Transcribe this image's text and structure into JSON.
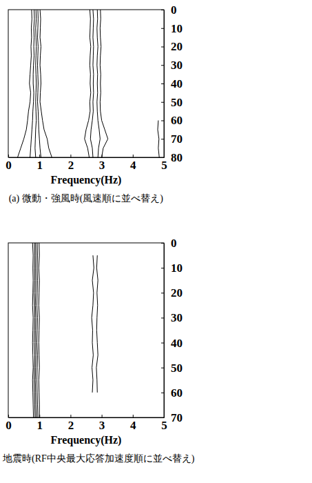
{
  "chart_data": [
    {
      "type": "contour",
      "title": "(a) 微動・強風時(風速順に並べ替え)",
      "x_label": "Frequency(Hz)",
      "color": "#000000",
      "xlim": [
        0,
        5
      ],
      "xticks": [
        0,
        1,
        2,
        3,
        4,
        5
      ],
      "ylim": [
        0,
        80
      ],
      "yticks": [
        0,
        10,
        20,
        30,
        40,
        50,
        60,
        70,
        80
      ],
      "y": [
        0,
        5,
        10,
        15,
        20,
        25,
        30,
        35,
        40,
        45,
        50,
        55,
        60,
        65,
        70,
        75,
        80
      ],
      "series": [
        {
          "x": [
            0.75,
            0.76,
            0.74,
            0.75,
            0.73,
            0.74,
            0.72,
            0.7,
            0.68,
            0.72,
            0.7,
            0.65,
            0.62,
            0.58,
            0.5,
            0.4,
            0.3
          ]
        },
        {
          "x": [
            0.83,
            0.84,
            0.82,
            0.83,
            0.82,
            0.83,
            0.81,
            0.8,
            0.8,
            0.82,
            0.81,
            0.79,
            0.78,
            0.76,
            0.74,
            0.72,
            0.7
          ]
        },
        {
          "x": [
            0.89,
            0.9,
            0.88,
            0.89,
            0.9,
            0.89,
            0.88,
            0.89,
            0.9,
            0.89,
            0.88,
            0.89,
            0.9,
            0.88,
            0.87,
            0.86,
            0.88
          ]
        },
        {
          "x": [
            0.95,
            0.96,
            0.95,
            0.94,
            0.96,
            0.95,
            0.94,
            0.95,
            0.96,
            0.95,
            0.94,
            0.96,
            0.97,
            0.98,
            1.0,
            1.02,
            1.05
          ]
        },
        {
          "x": [
            1.02,
            1.04,
            1.03,
            1.02,
            1.05,
            1.03,
            1.02,
            1.04,
            1.05,
            1.03,
            1.02,
            1.06,
            1.1,
            1.15,
            1.25,
            1.3,
            1.4
          ]
        },
        {
          "x": [
            2.62,
            2.64,
            2.63,
            2.62,
            2.65,
            2.63,
            2.62,
            2.64,
            2.63,
            2.65,
            2.62,
            2.63,
            2.58,
            2.5,
            2.45,
            2.55,
            2.6
          ]
        },
        {
          "x": [
            2.72,
            2.74,
            2.73,
            2.72,
            2.74,
            2.73,
            2.72,
            2.74,
            2.73,
            2.74,
            2.72,
            2.73,
            2.7,
            2.66,
            2.64,
            2.7,
            2.72
          ]
        },
        {
          "x": [
            2.86,
            2.87,
            2.85,
            2.86,
            2.88,
            2.86,
            2.85,
            2.87,
            2.86,
            2.87,
            2.85,
            2.86,
            2.88,
            2.92,
            2.95,
            2.9,
            2.88
          ]
        },
        {
          "x": [
            2.96,
            2.97,
            2.95,
            2.96,
            2.98,
            2.96,
            2.95,
            2.97,
            2.96,
            2.97,
            2.95,
            2.96,
            3.0,
            3.1,
            3.2,
            3.05,
            3.0
          ]
        },
        {
          "x": [
            null,
            null,
            null,
            null,
            null,
            null,
            null,
            null,
            null,
            null,
            null,
            null,
            4.82,
            4.8,
            4.84,
            4.82,
            4.85
          ]
        }
      ]
    },
    {
      "type": "contour",
      "title": "地震時(RF中央最大応答加速度順に並べ替え)",
      "x_label": "Frequency(Hz)",
      "color": "#000000",
      "xlim": [
        0,
        5
      ],
      "xticks": [
        0,
        1,
        2,
        3,
        4,
        5
      ],
      "ylim": [
        0,
        70
      ],
      "yticks": [
        0,
        10,
        20,
        30,
        40,
        50,
        60,
        70
      ],
      "y": [
        0,
        5,
        10,
        15,
        20,
        25,
        30,
        35,
        40,
        45,
        50,
        55,
        60,
        65,
        70
      ],
      "series": [
        {
          "x": [
            0.78,
            0.8,
            0.79,
            0.8,
            0.79,
            0.78,
            0.8,
            0.79,
            0.78,
            0.79,
            0.8,
            0.78,
            0.79,
            0.8,
            0.81
          ]
        },
        {
          "x": [
            0.84,
            0.85,
            0.84,
            0.85,
            0.83,
            0.84,
            0.85,
            0.84,
            0.83,
            0.85,
            0.84,
            0.83,
            0.84,
            0.85,
            0.86
          ]
        },
        {
          "x": [
            0.88,
            0.89,
            0.88,
            0.89,
            0.88,
            0.87,
            0.89,
            0.88,
            0.88,
            0.89,
            0.88,
            0.87,
            0.88,
            0.89,
            0.9
          ]
        },
        {
          "x": [
            0.93,
            0.94,
            0.93,
            0.94,
            0.93,
            0.92,
            0.94,
            0.93,
            0.92,
            0.94,
            0.93,
            0.92,
            0.93,
            0.94,
            0.95
          ]
        },
        {
          "x": [
            0.99,
            1.0,
            0.98,
            1.0,
            0.99,
            0.98,
            1.0,
            0.99,
            0.98,
            0.99,
            1.0,
            0.98,
            0.99,
            1.0,
            1.0
          ]
        },
        {
          "x": [
            null,
            2.72,
            2.75,
            2.7,
            2.74,
            2.72,
            2.68,
            2.71,
            2.7,
            2.73,
            2.69,
            2.72,
            2.7,
            null,
            null
          ]
        },
        {
          "x": [
            null,
            2.86,
            2.84,
            2.88,
            2.85,
            2.87,
            2.85,
            2.84,
            2.86,
            2.88,
            2.83,
            2.85,
            2.86,
            null,
            null
          ]
        }
      ]
    }
  ]
}
